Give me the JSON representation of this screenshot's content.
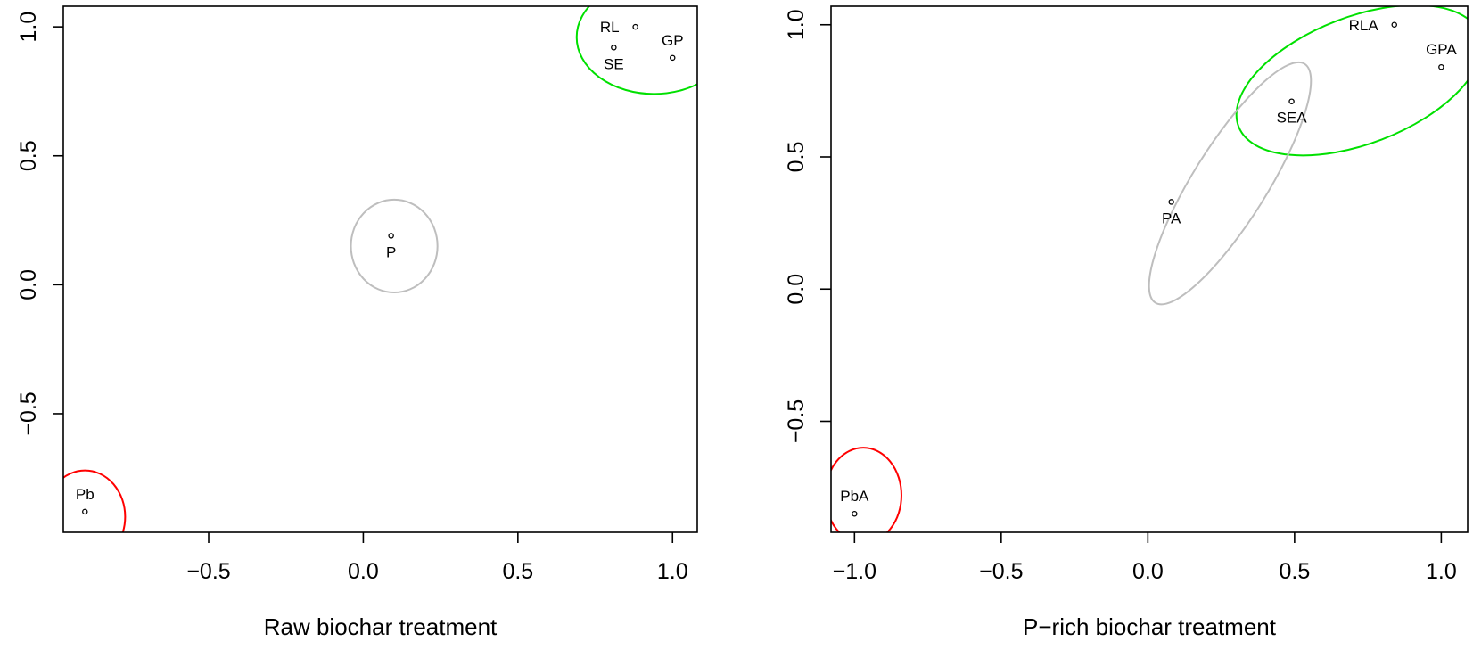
{
  "chart_data": [
    {
      "type": "scatter",
      "title": "",
      "xlabel": "Raw biochar treatment",
      "ylabel": "",
      "xlim": [
        -0.97,
        1.08
      ],
      "ylim": [
        -0.96,
        1.08
      ],
      "xticks": [
        -0.5,
        0.0,
        0.5,
        1.0
      ],
      "xtick_labels": [
        "−0.5",
        "0.0",
        "0.5",
        "1.0"
      ],
      "yticks": [
        -0.5,
        0.0,
        0.5,
        1.0
      ],
      "ytick_labels": [
        "−0.5",
        "0.0",
        "0.5",
        "1.0"
      ],
      "grid": false,
      "points": [
        {
          "label": "RL",
          "x": 0.88,
          "y": 1.0,
          "label_side": "left"
        },
        {
          "label": "SE",
          "x": 0.81,
          "y": 0.92,
          "label_side": "below"
        },
        {
          "label": "GP",
          "x": 1.0,
          "y": 0.88,
          "label_side": "above"
        },
        {
          "label": "P",
          "x": 0.09,
          "y": 0.19,
          "label_side": "below"
        },
        {
          "label": "Pb",
          "x": -0.9,
          "y": -0.88,
          "label_side": "above"
        }
      ],
      "ellipses": [
        {
          "cx": 0.94,
          "cy": 0.96,
          "rx": 0.25,
          "ry": 0.22,
          "angle": 0,
          "color": "#00e000"
        },
        {
          "cx": 0.1,
          "cy": 0.15,
          "rx": 0.14,
          "ry": 0.18,
          "angle": 0,
          "color": "#bebebe"
        },
        {
          "cx": -0.9,
          "cy": -0.9,
          "rx": 0.13,
          "ry": 0.18,
          "angle": 0,
          "color": "#ff0000"
        }
      ]
    },
    {
      "type": "scatter",
      "title": "",
      "xlabel": "P−rich biochar treatment",
      "ylabel": "",
      "xlim": [
        -1.08,
        1.09
      ],
      "ylim": [
        -0.92,
        1.07
      ],
      "xticks": [
        -1.0,
        -0.5,
        0.0,
        0.5,
        1.0
      ],
      "xtick_labels": [
        "−1.0",
        "−0.5",
        "0.0",
        "0.5",
        "1.0"
      ],
      "yticks": [
        -0.5,
        0.0,
        0.5,
        1.0
      ],
      "ytick_labels": [
        "−0.5",
        "0.0",
        "0.5",
        "1.0"
      ],
      "grid": false,
      "points": [
        {
          "label": "RLA",
          "x": 0.84,
          "y": 1.0,
          "label_side": "left"
        },
        {
          "label": "GPA",
          "x": 1.0,
          "y": 0.84,
          "label_side": "above"
        },
        {
          "label": "SEA",
          "x": 0.49,
          "y": 0.71,
          "label_side": "below"
        },
        {
          "label": "PA",
          "x": 0.08,
          "y": 0.33,
          "label_side": "below"
        },
        {
          "label": "PbA",
          "x": -1.0,
          "y": -0.85,
          "label_side": "above"
        }
      ],
      "ellipses": [
        {
          "cx": 0.72,
          "cy": 0.79,
          "rx": 0.44,
          "ry": 0.24,
          "angle": 21,
          "color": "#00e000"
        },
        {
          "cx": 0.28,
          "cy": 0.4,
          "rx": 0.48,
          "ry": 0.14,
          "angle": 58,
          "color": "#bebebe"
        },
        {
          "cx": -0.97,
          "cy": -0.78,
          "rx": 0.13,
          "ry": 0.18,
          "angle": 0,
          "color": "#ff0000"
        }
      ]
    }
  ]
}
